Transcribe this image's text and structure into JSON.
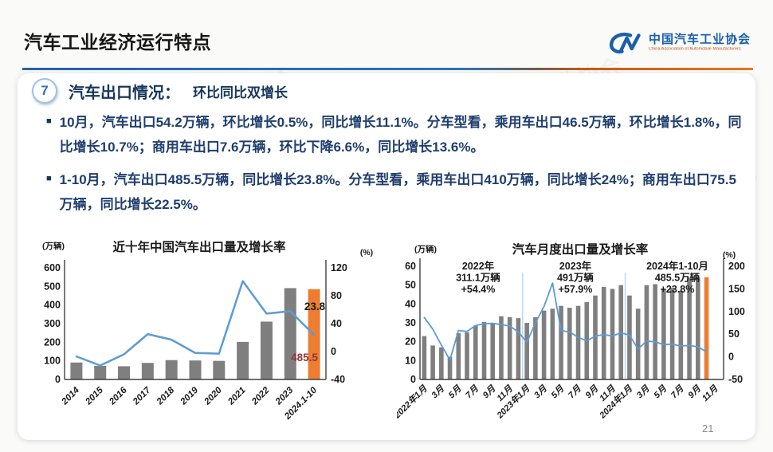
{
  "header": {
    "title": "汽车工业经济运行特点",
    "logo": {
      "org_cn": "中国汽车工业协会",
      "org_en": "China Association of Automobile Manufacturers"
    }
  },
  "section": {
    "number": "7",
    "title": "汽车出口情况：",
    "subtitle": "环比同比双增长"
  },
  "bullets": [
    "10月，汽车出口54.2万辆，环比增长0.5%，同比增长11.1%。分车型看，乘用车出口46.5万辆，环比增长1.8%，同比增长10.7%；商用车出口7.6万辆，环比下降6.6%，同比增长13.6%。",
    "1-10月，汽车出口485.5万辆，同比增长23.8%。分车型看，乘用车出口410万辆，同比增长24%；商用车出口75.5万辆，同比增长22.5%。"
  ],
  "watermark": "中国汽车工业协会",
  "page_number": "21",
  "colors": {
    "bar_gray": "#7f7f7f",
    "bar_orange": "#ed7d31",
    "line_blue": "#5b9bd5",
    "separator_blue": "#bdd7ee",
    "axis": "#404040",
    "annotation_dark": "#1a1a1a",
    "annotation_red": "#943634",
    "accent_blue": "#1b5faa",
    "accent_orange": "#c8511d",
    "divider_blue": "#2e74b5"
  },
  "chart_data": [
    {
      "type": "bar+line",
      "title": "近十年中国汽车出口量及增长率",
      "left_axis": {
        "label": "(万辆)",
        "min": 0,
        "max": 600,
        "ticks": [
          0,
          100,
          200,
          300,
          400,
          500,
          600
        ]
      },
      "right_axis": {
        "label": "(%)",
        "min": -40,
        "max": 120,
        "ticks": [
          -40,
          0,
          40,
          80,
          120
        ]
      },
      "categories": [
        "2014",
        "2015",
        "2016",
        "2017",
        "2018",
        "2019",
        "2020",
        "2021",
        "2022",
        "2023",
        "2024.1-10"
      ],
      "label_step": 1,
      "bars": {
        "name": "出口量(万辆)",
        "values": [
          91,
          73,
          71,
          89,
          104,
          102,
          100,
          202,
          311,
          491,
          485.5
        ],
        "highlight_index": 10
      },
      "line": {
        "name": "增长率(%)",
        "axis": "right",
        "values": [
          -7,
          -20,
          -4,
          25,
          17,
          -2,
          -3,
          101,
          54.4,
          57.9,
          23.8
        ]
      },
      "annotations": [
        {
          "text": "23.8",
          "color": "dark"
        },
        {
          "text": "485.5",
          "color": "red"
        }
      ],
      "legend_position": "none",
      "grid": false
    },
    {
      "type": "bar+line",
      "title": "汽车月度出口量及增长率",
      "left_axis": {
        "label": "(万辆)",
        "min": 0,
        "max": 60,
        "ticks": [
          0,
          10,
          20,
          30,
          40,
          50,
          60
        ]
      },
      "right_axis": {
        "label": "(%)",
        "min": -50,
        "max": 200,
        "ticks": [
          -50,
          0,
          50,
          100,
          150,
          200
        ]
      },
      "categories": [
        "2022年1月",
        "2月",
        "3月",
        "4月",
        "5月",
        "6月",
        "7月",
        "8月",
        "9月",
        "10月",
        "11月",
        "12月",
        "2023年1月",
        "2月",
        "3月",
        "4月",
        "5月",
        "6月",
        "7月",
        "8月",
        "9月",
        "10月",
        "11月",
        "12月",
        "2024年1月",
        "2月",
        "3月",
        "4月",
        "5月",
        "6月",
        "7月",
        "8月",
        "9月",
        "10月",
        "11月"
      ],
      "label_step": 2,
      "slots": 35.5,
      "bars": {
        "name": "出口量(万辆)",
        "values": [
          23,
          18,
          17,
          12,
          24.5,
          25,
          28.5,
          30.5,
          29.5,
          33.5,
          33,
          32.5,
          30,
          33,
          36.5,
          37.5,
          39,
          38,
          39,
          41,
          44.5,
          49,
          48,
          50,
          44.5,
          37.5,
          50,
          50.5,
          48,
          48.5,
          47,
          54,
          54,
          54.2
        ],
        "highlight_index": 33
      },
      "line": {
        "name": "增长率(%)",
        "axis": "right",
        "values": [
          87,
          61,
          26,
          -7,
          58,
          56,
          69,
          73,
          74,
          71,
          68,
          55,
          32,
          75,
          111,
          163,
          58,
          55,
          43,
          35,
          46,
          49,
          46,
          53,
          48,
          17,
          35,
          33,
          27,
          28,
          24,
          25,
          22,
          11
        ]
      },
      "separators": [
        12,
        24
      ],
      "annotations": [
        {
          "lines": [
            "2022年",
            "311.1万辆",
            "+54.4%"
          ]
        },
        {
          "lines": [
            "2023年",
            "491万辆",
            "+57.9%"
          ]
        },
        {
          "lines": [
            "2024年1-10月",
            "485.5万辆",
            "+23.8%"
          ]
        }
      ],
      "legend_position": "none",
      "grid": false
    }
  ]
}
